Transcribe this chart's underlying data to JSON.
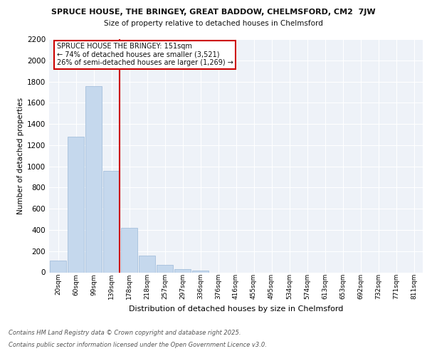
{
  "title_line1": "SPRUCE HOUSE, THE BRINGEY, GREAT BADDOW, CHELMSFORD, CM2  7JW",
  "title_line2": "Size of property relative to detached houses in Chelmsford",
  "xlabel": "Distribution of detached houses by size in Chelmsford",
  "ylabel": "Number of detached properties",
  "categories": [
    "20sqm",
    "60sqm",
    "99sqm",
    "139sqm",
    "178sqm",
    "218sqm",
    "257sqm",
    "297sqm",
    "336sqm",
    "376sqm",
    "416sqm",
    "455sqm",
    "495sqm",
    "534sqm",
    "574sqm",
    "613sqm",
    "653sqm",
    "692sqm",
    "732sqm",
    "771sqm",
    "811sqm"
  ],
  "values": [
    110,
    1280,
    1760,
    960,
    420,
    155,
    70,
    30,
    15,
    0,
    0,
    0,
    0,
    0,
    0,
    0,
    0,
    0,
    0,
    0,
    0
  ],
  "bar_color": "#c5d8ed",
  "bar_edge_color": "#9ab8d8",
  "vline_color": "#cc0000",
  "annotation_title": "SPRUCE HOUSE THE BRINGEY: 151sqm",
  "annotation_line1": "← 74% of detached houses are smaller (3,521)",
  "annotation_line2": "26% of semi-detached houses are larger (1,269) →",
  "annotation_box_color": "#cc0000",
  "ylim": [
    0,
    2200
  ],
  "yticks": [
    0,
    200,
    400,
    600,
    800,
    1000,
    1200,
    1400,
    1600,
    1800,
    2000,
    2200
  ],
  "background_color": "#eef2f8",
  "footer_line1": "Contains HM Land Registry data © Crown copyright and database right 2025.",
  "footer_line2": "Contains public sector information licensed under the Open Government Licence v3.0."
}
